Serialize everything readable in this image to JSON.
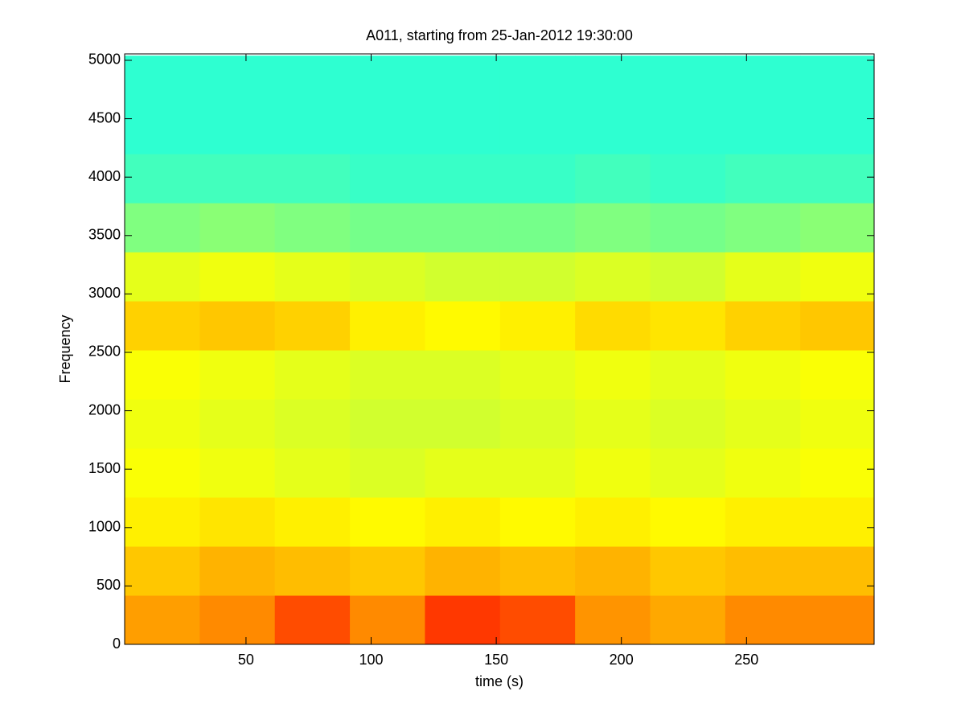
{
  "chart_data": {
    "type": "heatmap",
    "title": "A011, starting from 25-Jan-2012 19:30:00",
    "xlabel": "time (s)",
    "ylabel": "Frequency",
    "colormap": "jet",
    "clim": [
      0,
      1
    ],
    "x": [
      16.5,
      46.5,
      76.5,
      106.5,
      136.5,
      166.5,
      196.5,
      226.5,
      256.5,
      286.5
    ],
    "y": [
      210,
      630,
      1050,
      1470,
      1890,
      2310,
      2730,
      3150,
      3570,
      3990,
      4410,
      4830
    ],
    "z": [
      [
        0.72,
        0.74,
        0.8,
        0.74,
        0.82,
        0.8,
        0.73,
        0.71,
        0.74,
        0.74
      ],
      [
        0.68,
        0.7,
        0.69,
        0.68,
        0.7,
        0.69,
        0.7,
        0.68,
        0.69,
        0.69
      ],
      [
        0.64,
        0.65,
        0.64,
        0.63,
        0.64,
        0.63,
        0.64,
        0.63,
        0.64,
        0.64
      ],
      [
        0.62,
        0.61,
        0.6,
        0.59,
        0.6,
        0.6,
        0.61,
        0.6,
        0.61,
        0.62
      ],
      [
        0.61,
        0.6,
        0.59,
        0.58,
        0.58,
        0.59,
        0.6,
        0.59,
        0.6,
        0.61
      ],
      [
        0.62,
        0.61,
        0.6,
        0.59,
        0.59,
        0.6,
        0.61,
        0.6,
        0.61,
        0.62
      ],
      [
        0.67,
        0.68,
        0.67,
        0.64,
        0.63,
        0.64,
        0.66,
        0.65,
        0.67,
        0.68
      ],
      [
        0.6,
        0.61,
        0.6,
        0.59,
        0.58,
        0.58,
        0.59,
        0.58,
        0.6,
        0.61
      ],
      [
        0.5,
        0.51,
        0.5,
        0.49,
        0.49,
        0.49,
        0.5,
        0.49,
        0.5,
        0.51
      ],
      [
        0.44,
        0.44,
        0.44,
        0.43,
        0.43,
        0.43,
        0.44,
        0.43,
        0.44,
        0.44
      ],
      [
        0.42,
        0.42,
        0.42,
        0.42,
        0.42,
        0.42,
        0.42,
        0.42,
        0.42,
        0.42
      ],
      [
        0.42,
        0.42,
        0.42,
        0.42,
        0.42,
        0.42,
        0.42,
        0.42,
        0.42,
        0.42
      ]
    ],
    "xlim": [
      1.5,
      301
    ],
    "ylim": [
      0,
      5055
    ],
    "xticks": [
      50,
      100,
      150,
      200,
      250
    ],
    "yticks": [
      0,
      500,
      1000,
      1500,
      2000,
      2500,
      3000,
      3500,
      4000,
      4500,
      5000
    ]
  }
}
